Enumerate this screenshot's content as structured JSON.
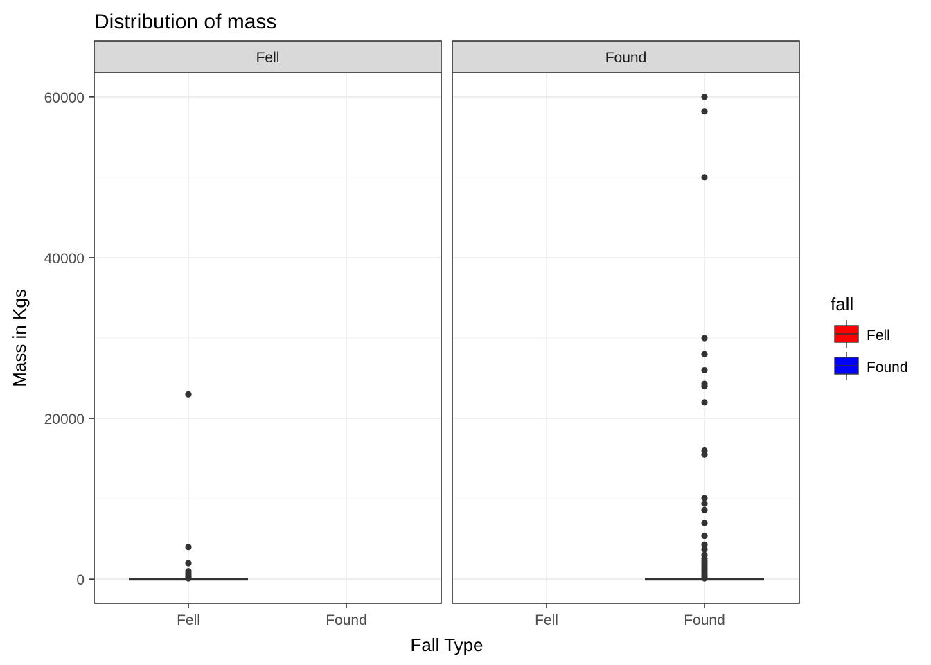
{
  "chart_data": {
    "type": "boxplot",
    "title": "Distribution of  mass",
    "xlabel": "Fall Type",
    "ylabel": "Mass in Kgs",
    "ylim": [
      -3000,
      63000
    ],
    "y_ticks": [
      0,
      20000,
      40000,
      60000
    ],
    "y_tick_labels": [
      "0",
      "20000",
      "40000",
      "60000"
    ],
    "categories": [
      "Fell",
      "Found"
    ],
    "grid": true,
    "facets": [
      {
        "strip_label": "Fell",
        "boxes": [
          {
            "category": "Fell",
            "median": 0,
            "q1": 0,
            "q3": 0,
            "whisker_low": 0,
            "whisker_high": 0,
            "outliers": [
              23000,
              4000,
              2000,
              1000,
              700,
              500,
              400,
              300,
              200,
              100
            ]
          }
        ]
      },
      {
        "strip_label": "Found",
        "boxes": [
          {
            "category": "Found",
            "median": 0,
            "q1": 0,
            "q3": 0,
            "whisker_low": 0,
            "whisker_high": 0,
            "outliers": [
              60000,
              58200,
              50000,
              30000,
              28000,
              26000,
              24300,
              24000,
              22000,
              16000,
              15500,
              10100,
              9400,
              8600,
              7000,
              5400,
              4300,
              3700,
              3000,
              2600,
              2300,
              2000,
              1700,
              1400,
              1100,
              800,
              500,
              300,
              100
            ]
          }
        ]
      }
    ],
    "legend": {
      "title": "fall",
      "position": "right",
      "items": [
        {
          "label": "Fell",
          "color": "#ff0000"
        },
        {
          "label": "Found",
          "color": "#0000ff"
        }
      ]
    }
  }
}
